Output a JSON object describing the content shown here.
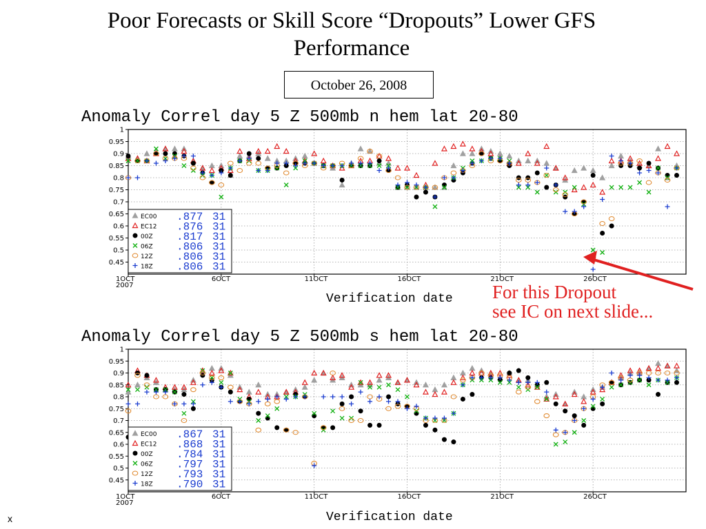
{
  "slide": {
    "title_line1": "Poor Forecasts or Skill Score “Dropouts” Lower GFS",
    "title_line2": "Performance",
    "date": "October 26, 2008",
    "callout_line1": "For this Dropout",
    "callout_line2": "see IC on next slide...",
    "footer": "x"
  },
  "colors": {
    "EC00": "#a0a0a0",
    "EC12": "#e02020",
    "00Z": "#000000",
    "06Z": "#10b010",
    "12Z": "#e08a30",
    "18Z": "#1a3ccf",
    "arrow": "#e02020",
    "grid": "#9a9a9a"
  },
  "chart_data": [
    {
      "type": "scatter",
      "title": "Anomaly Correl  day 5  Z 500mb  n hem  lat 20-80",
      "xlabel": "Verification date",
      "x_ticks": [
        "1OCT\n2007",
        "6OCT",
        "11OCT",
        "16OCT",
        "21OCT",
        "26OCT"
      ],
      "xlim": [
        1,
        31
      ],
      "ylim": [
        0.4,
        1
      ],
      "y_ticks": [
        "1",
        "0.95",
        "0.9",
        "0.85",
        "0.8",
        "0.75",
        "0.7",
        "0.65",
        "0.6",
        "0.55",
        "0.5",
        "0.45"
      ],
      "grid": true,
      "legend_position": "bottom-left",
      "legend": [
        {
          "name": "EC00",
          "value": ".877",
          "count": "31"
        },
        {
          "name": "EC12",
          "value": ".876",
          "count": "31"
        },
        {
          "name": "00Z",
          "value": ".817",
          "count": "31"
        },
        {
          "name": "06Z",
          "value": ".806",
          "count": "31"
        },
        {
          "name": "12Z",
          "value": ".806",
          "count": "31"
        },
        {
          "name": "18Z",
          "value": ".806",
          "count": "31"
        }
      ],
      "x": [
        1,
        1.5,
        2,
        2.5,
        3,
        3.5,
        4,
        4.5,
        5,
        5.5,
        6,
        6.5,
        7,
        7.5,
        8,
        8.5,
        9,
        9.5,
        10,
        10.5,
        11,
        11.5,
        12,
        12.5,
        13,
        13.5,
        14,
        14.5,
        15,
        15.5,
        16,
        16.5,
        17,
        17.5,
        18,
        18.5,
        19,
        19.5,
        20,
        20.5,
        21,
        21.5,
        22,
        22.5,
        23,
        23.5,
        24,
        24.5,
        25,
        25.5,
        26,
        26.5,
        27,
        27.5,
        28,
        28.5,
        29,
        29.5,
        30,
        30.5
      ],
      "series": [
        {
          "name": "EC00",
          "values": [
            0.89,
            0.88,
            0.9,
            0.91,
            0.92,
            0.92,
            0.92,
            0.87,
            0.84,
            0.85,
            0.85,
            0.81,
            0.89,
            0.89,
            0.9,
            0.88,
            0.87,
            0.87,
            0.88,
            0.89,
            0.86,
            0.85,
            0.84,
            0.77,
            0.86,
            0.92,
            0.91,
            0.86,
            0.86,
            0.76,
            0.76,
            0.76,
            0.76,
            0.76,
            0.76,
            0.85,
            0.9,
            0.9,
            0.92,
            0.91,
            0.9,
            0.89,
            0.87,
            0.87,
            0.87,
            0.86,
            0.84,
            0.79,
            0.83,
            0.84,
            0.83,
            0.8,
            0.85,
            0.89,
            0.87,
            0.85,
            0.85,
            0.92,
            0.8,
            0.85
          ]
        },
        {
          "name": "EC12",
          "values": [
            0.88,
            0.88,
            0.87,
            0.9,
            0.92,
            0.89,
            0.91,
            0.87,
            0.84,
            0.83,
            0.84,
            0.83,
            0.91,
            0.88,
            0.91,
            0.91,
            0.93,
            0.91,
            0.87,
            0.87,
            0.9,
            0.87,
            0.85,
            0.84,
            0.85,
            0.87,
            0.87,
            0.89,
            0.88,
            0.84,
            0.84,
            0.81,
            0.77,
            0.86,
            0.92,
            0.93,
            0.94,
            0.92,
            0.91,
            0.9,
            0.88,
            0.86,
            0.86,
            0.9,
            0.86,
            0.93,
            0.84,
            0.8,
            0.75,
            0.76,
            0.77,
            0.74,
            0.87,
            0.87,
            0.88,
            0.86,
            0.85,
            0.88,
            0.93,
            0.9
          ]
        },
        {
          "name": "00Z",
          "values": [
            0.89,
            0.87,
            0.87,
            0.9,
            0.9,
            0.9,
            0.89,
            0.86,
            0.82,
            0.78,
            0.83,
            0.81,
            0.87,
            0.9,
            0.88,
            0.84,
            0.84,
            0.85,
            0.86,
            0.86,
            0.86,
            0.85,
            0.85,
            0.79,
            0.85,
            0.85,
            0.85,
            0.87,
            0.83,
            0.76,
            0.77,
            0.72,
            0.74,
            0.72,
            0.77,
            0.79,
            0.82,
            0.86,
            0.9,
            0.88,
            0.87,
            0.85,
            0.8,
            0.8,
            0.82,
            0.76,
            0.77,
            0.72,
            0.65,
            0.7,
            0.81,
            0.57,
            0.6,
            0.85,
            0.85,
            0.84,
            0.86,
            0.84,
            0.81,
            0.81
          ]
        },
        {
          "name": "06Z",
          "values": [
            0.87,
            0.87,
            0.87,
            0.92,
            0.88,
            0.89,
            0.85,
            0.83,
            0.81,
            0.81,
            0.72,
            0.84,
            0.87,
            0.87,
            0.83,
            0.83,
            0.84,
            0.77,
            0.84,
            0.87,
            0.86,
            0.85,
            0.85,
            0.85,
            0.85,
            0.85,
            0.85,
            0.85,
            0.85,
            0.76,
            0.76,
            0.76,
            0.76,
            0.68,
            0.76,
            0.8,
            0.84,
            0.87,
            0.87,
            0.88,
            0.88,
            0.87,
            0.76,
            0.76,
            0.74,
            0.81,
            0.74,
            0.74,
            0.76,
            0.69,
            0.5,
            0.49,
            0.76,
            0.76,
            0.76,
            0.78,
            0.74,
            0.84,
            0.8,
            0.84
          ]
        },
        {
          "name": "12Z",
          "values": [
            0.8,
            0.87,
            0.87,
            0.9,
            0.88,
            0.88,
            0.88,
            0.84,
            0.8,
            0.78,
            0.77,
            0.86,
            0.83,
            0.86,
            0.86,
            0.84,
            0.85,
            0.82,
            0.86,
            0.85,
            0.86,
            0.84,
            0.85,
            0.86,
            0.85,
            0.88,
            0.91,
            0.89,
            0.83,
            0.8,
            0.76,
            0.76,
            0.76,
            0.76,
            0.8,
            0.82,
            0.83,
            0.85,
            0.9,
            0.87,
            0.87,
            0.86,
            0.79,
            0.79,
            0.78,
            0.81,
            0.75,
            0.73,
            0.65,
            0.7,
            0.47,
            0.61,
            0.63,
            0.86,
            0.86,
            0.87,
            0.78,
            0.82,
            0.79,
            0.84
          ]
        },
        {
          "name": "18Z",
          "values": [
            0.8,
            0.8,
            0.87,
            0.86,
            0.87,
            0.88,
            0.89,
            0.89,
            0.82,
            0.81,
            0.82,
            0.84,
            0.87,
            0.88,
            0.83,
            0.83,
            0.86,
            0.86,
            0.85,
            0.86,
            0.86,
            0.85,
            0.85,
            0.85,
            0.86,
            0.86,
            0.86,
            0.83,
            0.84,
            0.77,
            0.78,
            0.77,
            0.76,
            0.72,
            0.8,
            0.8,
            0.83,
            0.86,
            0.87,
            0.88,
            0.88,
            0.86,
            0.77,
            0.77,
            0.78,
            0.84,
            0.77,
            0.66,
            0.66,
            0.68,
            0.42,
            0.71,
            0.89,
            0.87,
            0.86,
            0.82,
            0.83,
            0.82,
            0.68,
            0.84
          ]
        }
      ]
    },
    {
      "type": "scatter",
      "title": "Anomaly Correl  day 5  Z 500mb  s hem  lat 20-80",
      "xlabel": "Verification date",
      "x_ticks": [
        "1OCT\n2007",
        "6OCT",
        "11OCT",
        "16OCT",
        "21OCT",
        "26OCT"
      ],
      "xlim": [
        1,
        31
      ],
      "ylim": [
        0.4,
        1
      ],
      "y_ticks": [
        "1",
        "0.95",
        "0.9",
        "0.85",
        "0.8",
        "0.75",
        "0.7",
        "0.65",
        "0.6",
        "0.55",
        "0.5",
        "0.45"
      ],
      "grid": true,
      "legend_position": "bottom-left",
      "legend": [
        {
          "name": "EC00",
          "value": ".867",
          "count": "31"
        },
        {
          "name": "EC12",
          "value": ".868",
          "count": "31"
        },
        {
          "name": "00Z",
          "value": ".784",
          "count": "31"
        },
        {
          "name": "06Z",
          "value": ".797",
          "count": "31"
        },
        {
          "name": "12Z",
          "value": ".793",
          "count": "31"
        },
        {
          "name": "18Z",
          "value": ".790",
          "count": "31"
        }
      ],
      "x": [
        1,
        1.5,
        2,
        2.5,
        3,
        3.5,
        4,
        4.5,
        5,
        5.5,
        6,
        6.5,
        7,
        7.5,
        8,
        8.5,
        9,
        9.5,
        10,
        10.5,
        11,
        11.5,
        12,
        12.5,
        13,
        13.5,
        14,
        14.5,
        15,
        15.5,
        16,
        16.5,
        17,
        17.5,
        18,
        18.5,
        19,
        19.5,
        20,
        20.5,
        21,
        21.5,
        22,
        22.5,
        23,
        23.5,
        24,
        24.5,
        25,
        25.5,
        26,
        26.5,
        27,
        27.5,
        28,
        28.5,
        29,
        29.5,
        30,
        30.5
      ],
      "series": [
        {
          "name": "EC00",
          "values": [
            0.82,
            0.85,
            0.88,
            0.86,
            0.83,
            0.83,
            0.83,
            0.87,
            0.91,
            0.92,
            0.92,
            0.89,
            0.84,
            0.82,
            0.85,
            0.81,
            0.81,
            0.82,
            0.83,
            0.84,
            0.87,
            0.9,
            0.87,
            0.88,
            0.85,
            0.85,
            0.85,
            0.87,
            0.88,
            0.86,
            0.87,
            0.86,
            0.85,
            0.83,
            0.85,
            0.88,
            0.9,
            0.92,
            0.91,
            0.9,
            0.88,
            0.9,
            0.87,
            0.87,
            0.85,
            0.8,
            0.81,
            0.77,
            0.82,
            0.8,
            0.83,
            0.84,
            0.86,
            0.88,
            0.9,
            0.9,
            0.92,
            0.94,
            0.93,
            0.91
          ]
        },
        {
          "name": "EC12",
          "values": [
            0.85,
            0.91,
            0.89,
            0.87,
            0.84,
            0.84,
            0.84,
            0.86,
            0.91,
            0.9,
            0.91,
            0.9,
            0.83,
            0.8,
            0.82,
            0.8,
            0.8,
            0.82,
            0.82,
            0.86,
            0.9,
            0.9,
            0.88,
            0.89,
            0.84,
            0.86,
            0.86,
            0.89,
            0.89,
            0.86,
            0.87,
            0.85,
            0.82,
            0.81,
            0.82,
            0.86,
            0.88,
            0.9,
            0.9,
            0.9,
            0.9,
            0.89,
            0.87,
            0.85,
            0.84,
            0.79,
            0.8,
            0.77,
            0.81,
            0.78,
            0.82,
            0.83,
            0.86,
            0.89,
            0.91,
            0.91,
            0.92,
            0.92,
            0.93,
            0.93
          ]
        },
        {
          "name": "00Z",
          "values": [
            0.63,
            0.9,
            0.89,
            0.83,
            0.83,
            0.82,
            0.81,
            0.75,
            0.89,
            0.87,
            0.84,
            0.82,
            0.78,
            0.79,
            0.73,
            0.71,
            0.67,
            0.66,
            0.81,
            0.8,
            0.72,
            0.67,
            0.67,
            0.77,
            0.8,
            0.74,
            0.68,
            0.68,
            0.8,
            0.77,
            0.76,
            0.73,
            0.68,
            0.66,
            0.62,
            0.61,
            0.79,
            0.81,
            0.88,
            0.88,
            0.87,
            0.9,
            0.91,
            0.88,
            0.85,
            0.86,
            0.77,
            0.74,
            0.72,
            0.68,
            0.75,
            0.77,
            0.86,
            0.85,
            0.86,
            0.87,
            0.87,
            0.81,
            0.86,
            0.86
          ]
        },
        {
          "name": "06Z",
          "values": [
            0.83,
            0.83,
            0.84,
            0.83,
            0.83,
            0.82,
            0.73,
            0.78,
            0.91,
            0.88,
            0.86,
            0.9,
            0.79,
            0.78,
            0.7,
            0.72,
            0.75,
            0.8,
            0.8,
            0.81,
            0.73,
            0.66,
            0.74,
            0.71,
            0.71,
            0.86,
            0.84,
            0.84,
            0.85,
            0.83,
            0.8,
            0.74,
            0.71,
            0.7,
            0.7,
            0.73,
            0.85,
            0.87,
            0.87,
            0.87,
            0.86,
            0.86,
            0.84,
            0.83,
            0.84,
            0.79,
            0.6,
            0.61,
            0.65,
            0.7,
            0.76,
            0.79,
            0.84,
            0.85,
            0.86,
            0.87,
            0.85,
            0.87,
            0.86,
            0.88
          ]
        },
        {
          "name": "12Z",
          "values": [
            0.74,
            0.89,
            0.85,
            0.8,
            0.8,
            0.77,
            0.7,
            0.83,
            0.9,
            0.88,
            0.88,
            0.84,
            0.78,
            0.77,
            0.66,
            0.77,
            0.78,
            0.66,
            0.65,
            0.8,
            0.52,
            0.67,
            0.9,
            0.75,
            0.7,
            0.7,
            0.8,
            0.79,
            0.75,
            0.76,
            0.76,
            0.75,
            0.7,
            0.7,
            0.7,
            0.8,
            0.87,
            0.88,
            0.9,
            0.89,
            0.89,
            0.88,
            0.82,
            0.84,
            0.78,
            0.72,
            0.64,
            0.65,
            0.7,
            0.75,
            0.8,
            0.85,
            0.86,
            0.88,
            0.87,
            0.9,
            0.9,
            0.9,
            0.9,
            0.9
          ]
        },
        {
          "name": "18Z",
          "values": [
            0.77,
            0.77,
            0.82,
            0.82,
            0.82,
            0.77,
            0.77,
            0.77,
            0.85,
            0.86,
            0.84,
            0.78,
            0.78,
            0.77,
            0.78,
            0.79,
            0.8,
            0.79,
            0.8,
            0.8,
            0.51,
            0.8,
            0.8,
            0.8,
            0.77,
            0.82,
            0.78,
            0.8,
            0.78,
            0.78,
            0.75,
            0.76,
            0.71,
            0.71,
            0.71,
            0.73,
            0.85,
            0.88,
            0.88,
            0.88,
            0.88,
            0.87,
            0.86,
            0.86,
            0.86,
            0.82,
            0.66,
            0.65,
            0.7,
            0.75,
            0.79,
            0.84,
            0.9,
            0.87,
            0.89,
            0.89,
            0.88,
            0.87,
            0.87,
            0.88
          ]
        }
      ]
    }
  ]
}
